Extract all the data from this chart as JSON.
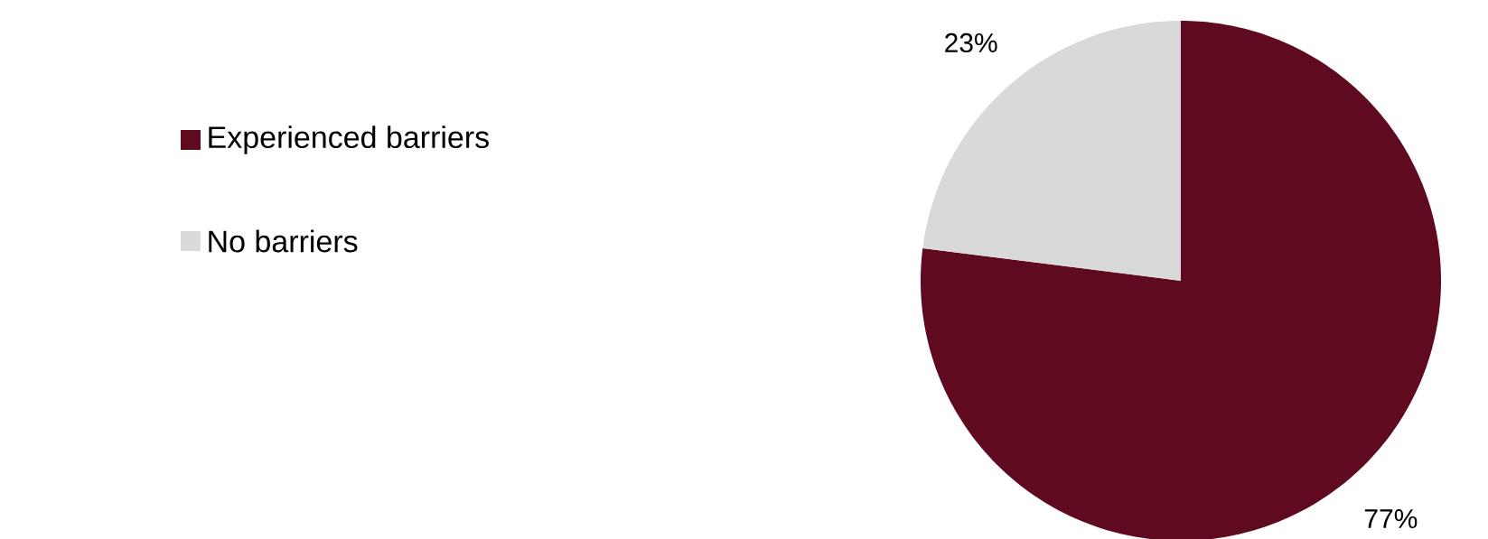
{
  "chart_data": {
    "type": "pie",
    "categories": [
      "Experienced barriers",
      "No barriers"
    ],
    "values": [
      77,
      23
    ],
    "colors": [
      "#5f0a1e",
      "#d9d9d9"
    ],
    "value_labels": [
      "77%",
      "23%"
    ],
    "legend": "left"
  }
}
